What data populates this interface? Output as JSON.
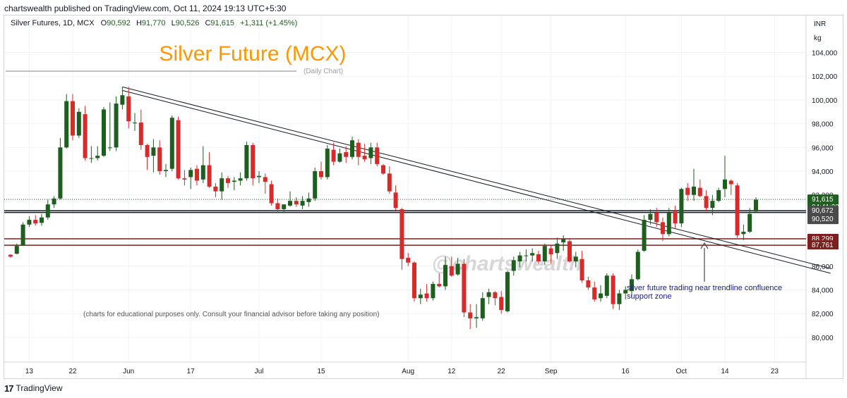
{
  "header": {
    "publisher": "chartswealth published on TradingView.com, Oct 11, 2024 19:13 UTC+5:30"
  },
  "symbol_line": {
    "name": "Silver Futures, 1D, MCX",
    "open_label": "O",
    "open": "90,592",
    "high_label": "H",
    "high": "91,770",
    "low_label": "L",
    "low": "90,526",
    "close_label": "C",
    "close": "91,615",
    "change": "+1,311 (+1.45%)"
  },
  "title": "Silver Future (MCX)",
  "subtitle": "(Daily Chart)",
  "watermark": "@chartswealth",
  "disclaimer": "(charts for educational purposes only. Consult your financial advisor before taking any position)",
  "annotation": [
    "silver future trading near trendline confluence",
    "support zone"
  ],
  "footer": {
    "logo": "17",
    "brand": "TradingView"
  },
  "colors": {
    "up": "#1e5e1e",
    "down": "#d42b2b",
    "title": "#ff9800",
    "annotation": "#1a237e",
    "support_line": "#7b1f1f",
    "price_tag_green": "#1e5e1e",
    "price_tag_dark": "#4a4a4a",
    "price_tag_red": "#7b1f1f"
  },
  "chart_data": {
    "type": "candlestick",
    "title": "Silver Future (MCX)",
    "subtitle": "(Daily Chart)",
    "currency_label": "INR",
    "unit_label": "kg",
    "ylim": [
      78800,
      105300
    ],
    "y_ticks": [
      "104,000",
      "102,000",
      "100,000",
      "98,000",
      "96,000",
      "94,000",
      "92,000",
      "88,000",
      "86,000",
      "84,000",
      "82,000",
      "80,000"
    ],
    "x_ticks": [
      "13",
      "22",
      "Jun",
      "17",
      "Jul",
      "15",
      "Aug",
      "12",
      "22",
      "Sep",
      "16",
      "Oct",
      "14",
      "23"
    ],
    "candles": [
      [
        86960,
        87000,
        86700,
        86800
      ],
      [
        87040,
        87900,
        87000,
        87700
      ],
      [
        87720,
        89700,
        87700,
        89500
      ],
      [
        89500,
        90200,
        89300,
        89900
      ],
      [
        89900,
        90300,
        89400,
        89600
      ],
      [
        89650,
        90400,
        89400,
        90100
      ],
      [
        90100,
        91600,
        89900,
        91200
      ],
      [
        91200,
        91900,
        90900,
        91700
      ],
      [
        91700,
        96800,
        91600,
        96000
      ],
      [
        96000,
        100500,
        95900,
        99900
      ],
      [
        99900,
        100500,
        96600,
        97000
      ],
      [
        97000,
        99300,
        96800,
        99000
      ],
      [
        98800,
        99500,
        94900,
        95100
      ],
      [
        95100,
        96100,
        94700,
        95100
      ],
      [
        95100,
        96100,
        94900,
        95300
      ],
      [
        95300,
        99400,
        95200,
        99200
      ],
      [
        96000,
        99800,
        95700,
        96000
      ],
      [
        96000,
        100300,
        95700,
        99700
      ],
      [
        99600,
        101100,
        99200,
        100400
      ],
      [
        100300,
        101100,
        97600,
        98200
      ],
      [
        98100,
        98900,
        97400,
        98100
      ],
      [
        98100,
        99200,
        95800,
        96200
      ],
      [
        96200,
        96300,
        94100,
        95200
      ],
      [
        95300,
        96700,
        93900,
        96000
      ],
      [
        96000,
        96600,
        93700,
        94000
      ],
      [
        94000,
        94600,
        93500,
        94100
      ],
      [
        94200,
        98700,
        94000,
        98500
      ],
      [
        98300,
        98600,
        93300,
        93400
      ],
      [
        93400,
        94100,
        92800,
        93300
      ],
      [
        93500,
        94300,
        92500,
        94100
      ],
      [
        94200,
        94500,
        92800,
        93200
      ],
      [
        93300,
        96100,
        93000,
        94500
      ],
      [
        94500,
        95600,
        92600,
        92700
      ],
      [
        92700,
        93000,
        91800,
        92300
      ],
      [
        92300,
        93900,
        91600,
        93400
      ],
      [
        93400,
        93600,
        92600,
        93000
      ],
      [
        93100,
        93500,
        92400,
        93200
      ],
      [
        93200,
        93900,
        92800,
        93400
      ],
      [
        93400,
        96500,
        93200,
        96200
      ],
      [
        96200,
        96400,
        92800,
        93400
      ],
      [
        93500,
        94000,
        93000,
        93600
      ],
      [
        93500,
        93800,
        92100,
        93100
      ],
      [
        92900,
        93200,
        91100,
        91300
      ],
      [
        91300,
        91700,
        90500,
        90800
      ],
      [
        90800,
        91200,
        90500,
        91200
      ],
      [
        91100,
        92300,
        91000,
        91500
      ],
      [
        91500,
        91800,
        91000,
        91200
      ],
      [
        91100,
        91900,
        90800,
        91500
      ],
      [
        91400,
        92200,
        91000,
        91700
      ],
      [
        91700,
        94300,
        91500,
        94000
      ],
      [
        94000,
        94800,
        93300,
        93500
      ],
      [
        93500,
        96200,
        93300,
        95900
      ],
      [
        95800,
        96400,
        94500,
        94800
      ],
      [
        94800,
        95900,
        94700,
        95500
      ],
      [
        95600,
        96100,
        94700,
        95200
      ],
      [
        95200,
        96900,
        95000,
        96600
      ],
      [
        96400,
        96700,
        94500,
        95200
      ],
      [
        95300,
        96300,
        94800,
        95000
      ],
      [
        95100,
        96400,
        94600,
        96000
      ],
      [
        96000,
        96400,
        94400,
        94600
      ],
      [
        94500,
        94600,
        93700,
        93800
      ],
      [
        93800,
        94400,
        92100,
        92300
      ],
      [
        92200,
        92800,
        90700,
        90900
      ],
      [
        90800,
        90900,
        85700,
        86600
      ],
      [
        86700,
        87100,
        86000,
        86300
      ],
      [
        86300,
        86400,
        83000,
        83300
      ],
      [
        83300,
        84100,
        82800,
        83600
      ],
      [
        83700,
        84500,
        83000,
        83300
      ],
      [
        83300,
        84700,
        83100,
        84500
      ],
      [
        84500,
        85400,
        84200,
        84300
      ],
      [
        84300,
        86800,
        84000,
        86100
      ],
      [
        86000,
        86800,
        85100,
        85200
      ],
      [
        85300,
        86700,
        85200,
        86200
      ],
      [
        86200,
        86600,
        81700,
        82100
      ],
      [
        82100,
        82800,
        80700,
        81600
      ],
      [
        81600,
        82800,
        80800,
        81700
      ],
      [
        81600,
        83800,
        81400,
        83300
      ],
      [
        83400,
        84100,
        82800,
        83800
      ],
      [
        83800,
        83900,
        82700,
        83300
      ],
      [
        83400,
        83900,
        82000,
        82300
      ],
      [
        82200,
        85600,
        82100,
        85500
      ],
      [
        85600,
        86800,
        85200,
        86500
      ],
      [
        86400,
        87200,
        85900,
        86900
      ],
      [
        86900,
        87400,
        86400,
        86900
      ],
      [
        86900,
        87500,
        86400,
        87100
      ],
      [
        87000,
        87300,
        86200,
        86400
      ],
      [
        86400,
        87900,
        86100,
        87700
      ],
      [
        87500,
        87800,
        86200,
        87000
      ],
      [
        87100,
        88400,
        86600,
        87900
      ],
      [
        88000,
        88600,
        87300,
        88300
      ],
      [
        88100,
        88300,
        86300,
        86400
      ],
      [
        86400,
        87200,
        85900,
        86800
      ],
      [
        86600,
        87300,
        84600,
        84800
      ],
      [
        84800,
        85100,
        84000,
        84200
      ],
      [
        84200,
        84700,
        83000,
        83200
      ],
      [
        83300,
        84400,
        83000,
        83700
      ],
      [
        83500,
        85400,
        83300,
        85200
      ],
      [
        85200,
        85400,
        82400,
        82800
      ],
      [
        82800,
        84000,
        82300,
        83700
      ],
      [
        83700,
        84300,
        83200,
        84000
      ],
      [
        83900,
        85300,
        83300,
        84900
      ],
      [
        84900,
        87400,
        84800,
        87200
      ],
      [
        87300,
        90300,
        87200,
        89900
      ],
      [
        89900,
        90800,
        89500,
        90400
      ],
      [
        90500,
        90900,
        89300,
        89700
      ],
      [
        89700,
        90100,
        88100,
        88700
      ],
      [
        88700,
        90900,
        88500,
        90500
      ],
      [
        90600,
        91100,
        89200,
        89600
      ],
      [
        89600,
        92600,
        89300,
        92500
      ],
      [
        92600,
        93000,
        91500,
        92000
      ],
      [
        92000,
        94200,
        91500,
        92700
      ],
      [
        92600,
        93300,
        91800,
        91900
      ],
      [
        91900,
        92400,
        90600,
        90900
      ],
      [
        90900,
        92000,
        90300,
        91500
      ],
      [
        91500,
        92600,
        91400,
        92400
      ],
      [
        92500,
        95300,
        91800,
        93300
      ],
      [
        93200,
        93300,
        92000,
        92900
      ],
      [
        92800,
        93000,
        88400,
        88600
      ],
      [
        88700,
        89500,
        88200,
        88900
      ],
      [
        88900,
        90900,
        88800,
        90400
      ],
      [
        90600,
        91800,
        90500,
        91600
      ]
    ],
    "horizontal_levels": [
      {
        "value": 90672,
        "color": "#131722",
        "label": "90,672"
      },
      {
        "value": 90520,
        "color": "#131722",
        "label": "90,520"
      },
      {
        "value": 88299,
        "color": "#7b1f1f",
        "label": "88,299"
      },
      {
        "value": 87761,
        "color": "#7b1f1f",
        "label": "87,761"
      }
    ],
    "last_price": {
      "value": 91615,
      "label": "91,615",
      "countdown": "04:41:32"
    },
    "dotted_level": 91615,
    "trendlines": [
      {
        "from": [
          18,
          101100
        ],
        "to": [
          132,
          85800
        ]
      },
      {
        "from": [
          18,
          100800
        ],
        "to": [
          132,
          85400
        ]
      }
    ],
    "title_underline_y": 100300
  }
}
